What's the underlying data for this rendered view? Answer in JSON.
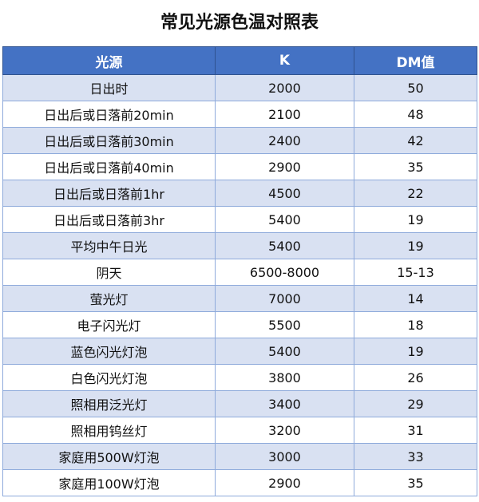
{
  "title": "常见光源色温对照表",
  "headers": {
    "source": "光源",
    "k": "K",
    "dm": "DM值"
  },
  "rows": [
    {
      "source": "日出时",
      "k": "2000",
      "dm": "50"
    },
    {
      "source": "日出后或日落前20min",
      "k": "2100",
      "dm": "48"
    },
    {
      "source": "日出后或日落前30min",
      "k": "2400",
      "dm": "42"
    },
    {
      "source": "日出后或日落前40min",
      "k": "2900",
      "dm": "35"
    },
    {
      "source": "日出后或日落前1hr",
      "k": "4500",
      "dm": "22"
    },
    {
      "source": "日出后或日落前3hr",
      "k": "5400",
      "dm": "19"
    },
    {
      "source": "平均中午日光",
      "k": "5400",
      "dm": "19"
    },
    {
      "source": "阴天",
      "k": "6500-8000",
      "dm": "15-13"
    },
    {
      "source": "萤光灯",
      "k": "7000",
      "dm": "14"
    },
    {
      "source": "电子闪光灯",
      "k": "5500",
      "dm": "18"
    },
    {
      "source": "蓝色闪光灯泡",
      "k": "5400",
      "dm": "19"
    },
    {
      "source": "白色闪光灯泡",
      "k": "3800",
      "dm": "26"
    },
    {
      "source": "照相用泛光灯",
      "k": "3400",
      "dm": "29"
    },
    {
      "source": "照相用钨丝灯",
      "k": "3200",
      "dm": "31"
    },
    {
      "source": "家庭用500W灯泡",
      "k": "3000",
      "dm": "33"
    },
    {
      "source": "家庭用100W灯泡",
      "k": "2900",
      "dm": "35"
    }
  ],
  "colors": {
    "header_bg": "#4472c4",
    "header_text": "#ffffff",
    "band_row": "#d9e1f2",
    "plain_row": "#ffffff",
    "grid": "#8eaadb"
  }
}
